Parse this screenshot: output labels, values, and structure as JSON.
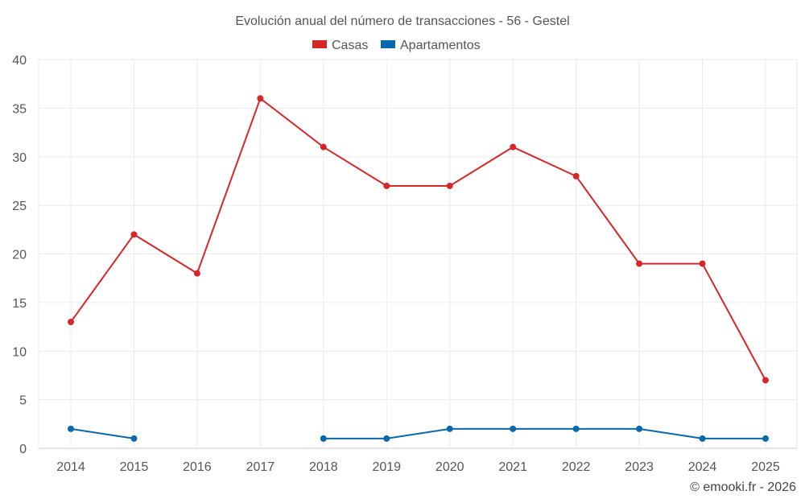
{
  "chart_data": {
    "type": "line",
    "title": "Evolución anual del número de transacciones - 56 - Gestel",
    "xlabel": "",
    "ylabel": "",
    "categories": [
      "2014",
      "2015",
      "2016",
      "2017",
      "2018",
      "2019",
      "2020",
      "2021",
      "2022",
      "2023",
      "2024",
      "2025"
    ],
    "ylim": [
      0,
      40
    ],
    "yticks": [
      0,
      5,
      10,
      15,
      20,
      25,
      30,
      35,
      40
    ],
    "grid": true,
    "legend_position": "top-center",
    "series": [
      {
        "name": "Casas",
        "color": "#d62728",
        "values": [
          13,
          22,
          18,
          36,
          31,
          27,
          27,
          31,
          28,
          19,
          19,
          7
        ]
      },
      {
        "name": "Apartamentos",
        "color": "#0868ac",
        "values": [
          2,
          1,
          null,
          null,
          1,
          1,
          2,
          2,
          2,
          2,
          1,
          1
        ]
      }
    ]
  },
  "credit": "© emooki.fr - 2026"
}
